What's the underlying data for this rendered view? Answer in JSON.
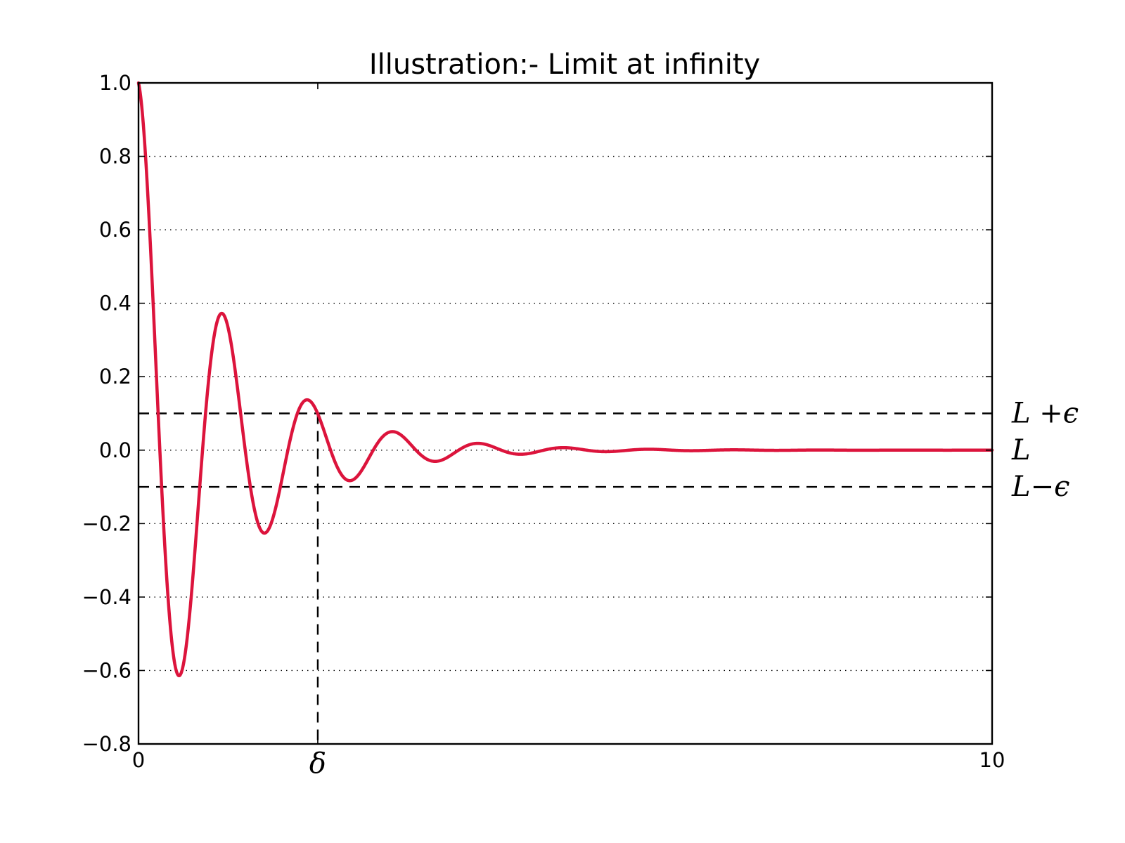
{
  "chart_data": {
    "type": "line",
    "title": "Illustration:- Limit at infinity",
    "xlabel": "",
    "ylabel": "",
    "xlim": [
      0,
      10
    ],
    "ylim": [
      -0.8,
      1.0
    ],
    "grid": {
      "axis": "y",
      "style": "dotted",
      "color": "#000000",
      "enabled": true
    },
    "legend": false,
    "y_ticks": [
      1.0,
      0.8,
      0.6,
      0.4,
      0.2,
      0.0,
      -0.2,
      -0.4,
      -0.6,
      -0.8
    ],
    "y_tick_labels": [
      "1.0",
      "0.8",
      "0.6",
      "0.4",
      "0.2",
      "0.0",
      "−0.2",
      "−0.4",
      "−0.6",
      "−0.8"
    ],
    "x_ticks": [
      {
        "value": 0,
        "label": "0"
      },
      {
        "value": 2.1,
        "label": "δ"
      },
      {
        "value": 10,
        "label": "10"
      }
    ],
    "series": [
      {
        "color": "#dc143c",
        "function": "cos(2*pi*x) * exp(-x)",
        "x": [
          0,
          0.25,
          0.5,
          0.75,
          1.0,
          1.25,
          1.5,
          1.75,
          2.0,
          2.25,
          2.5,
          2.75,
          3.0,
          3.5,
          4.0,
          4.5,
          5.0,
          6.0,
          7.0,
          8.0,
          9.0,
          10.0
        ],
        "values": [
          1.0,
          0.0,
          -0.607,
          0.0,
          0.368,
          0.0,
          -0.223,
          0.0,
          0.135,
          0.0,
          -0.082,
          0.0,
          0.05,
          -0.03,
          0.018,
          -0.011,
          0.007,
          0.002,
          0.001,
          0.0,
          0.0,
          0.0
        ]
      }
    ],
    "reference_lines": {
      "horizontal": [
        {
          "y": 0.1,
          "label": "L +ϵ",
          "style": "dashed"
        },
        {
          "y": 0.0,
          "label": "L",
          "style": "none"
        },
        {
          "y": -0.1,
          "label": "L−ϵ",
          "style": "dashed"
        }
      ],
      "vertical": [
        {
          "x": 2.1,
          "y_top": 0.1,
          "style": "dashed"
        }
      ]
    }
  }
}
